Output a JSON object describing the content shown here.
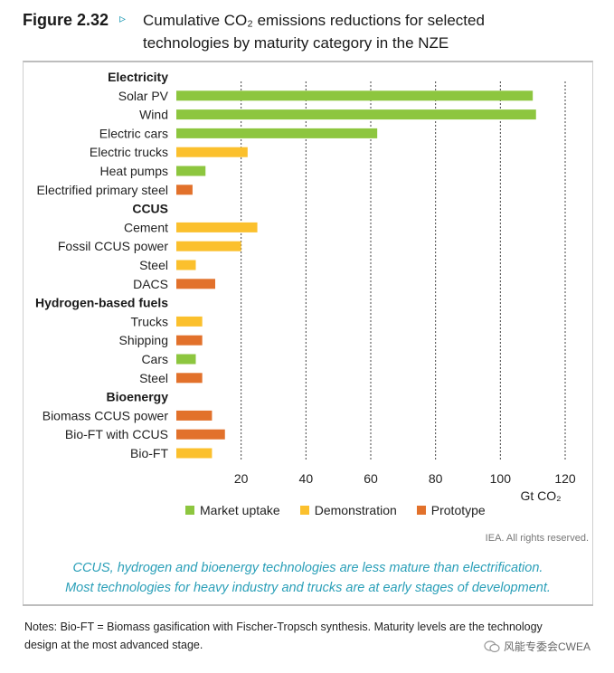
{
  "figure": {
    "label": "Figure 2.32",
    "marker": "▹",
    "title_line1": "Cumulative CO₂ emissions reductions for selected",
    "title_line2": "technologies by maturity category in the NZE"
  },
  "chart_data": {
    "type": "bar",
    "orientation": "horizontal",
    "x_unit_label": "Gt CO₂",
    "xlim": [
      0,
      120
    ],
    "xticks": [
      20,
      40,
      60,
      80,
      100,
      120
    ],
    "groups": [
      {
        "name": "Electricity",
        "rows": [
          {
            "label": "Solar PV",
            "value": 110,
            "category": "Market uptake"
          },
          {
            "label": "Wind",
            "value": 111,
            "category": "Market uptake"
          },
          {
            "label": "Electric cars",
            "value": 62,
            "category": "Market uptake"
          },
          {
            "label": "Electric trucks",
            "value": 22,
            "category": "Demonstration"
          },
          {
            "label": "Heat pumps",
            "value": 9,
            "category": "Market uptake"
          },
          {
            "label": "Electrified primary steel",
            "value": 5,
            "category": "Prototype"
          }
        ]
      },
      {
        "name": "CCUS",
        "rows": [
          {
            "label": "Cement",
            "value": 25,
            "category": "Demonstration"
          },
          {
            "label": "Fossil CCUS power",
            "value": 20,
            "category": "Demonstration"
          },
          {
            "label": "Steel",
            "value": 6,
            "category": "Demonstration"
          },
          {
            "label": "DACS",
            "value": 12,
            "category": "Prototype"
          }
        ]
      },
      {
        "name": "Hydrogen-based fuels",
        "rows": [
          {
            "label": "Trucks",
            "value": 8,
            "category": "Demonstration"
          },
          {
            "label": "Shipping",
            "value": 8,
            "category": "Prototype"
          },
          {
            "label": "Cars",
            "value": 6,
            "category": "Market uptake"
          },
          {
            "label": "Steel",
            "value": 8,
            "category": "Prototype"
          }
        ]
      },
      {
        "name": "Bioenergy",
        "rows": [
          {
            "label": "Biomass CCUS power",
            "value": 11,
            "category": "Prototype"
          },
          {
            "label": "Bio-FT with CCUS",
            "value": 15,
            "category": "Prototype"
          },
          {
            "label": "Bio-FT",
            "value": 11,
            "category": "Demonstration"
          }
        ]
      }
    ],
    "legend": [
      {
        "name": "Market uptake",
        "color": "#8dc63f"
      },
      {
        "name": "Demonstration",
        "color": "#fbc02d"
      },
      {
        "name": "Prototype",
        "color": "#e2712b"
      }
    ],
    "legend_position": "bottom"
  },
  "credit": "IEA. All rights reserved.",
  "caption": {
    "line1": "CCUS, hydrogen and bioenergy technologies are less mature than electrification.",
    "line2": "Most technologies for heavy industry and trucks are at early stages of development."
  },
  "notes": {
    "line1": "Notes: Bio-FT = Biomass gasification with Fischer-Tropsch synthesis. Maturity levels are the technology",
    "line2": "design at the most advanced stage."
  },
  "watermark": "风能专委会CWEA"
}
